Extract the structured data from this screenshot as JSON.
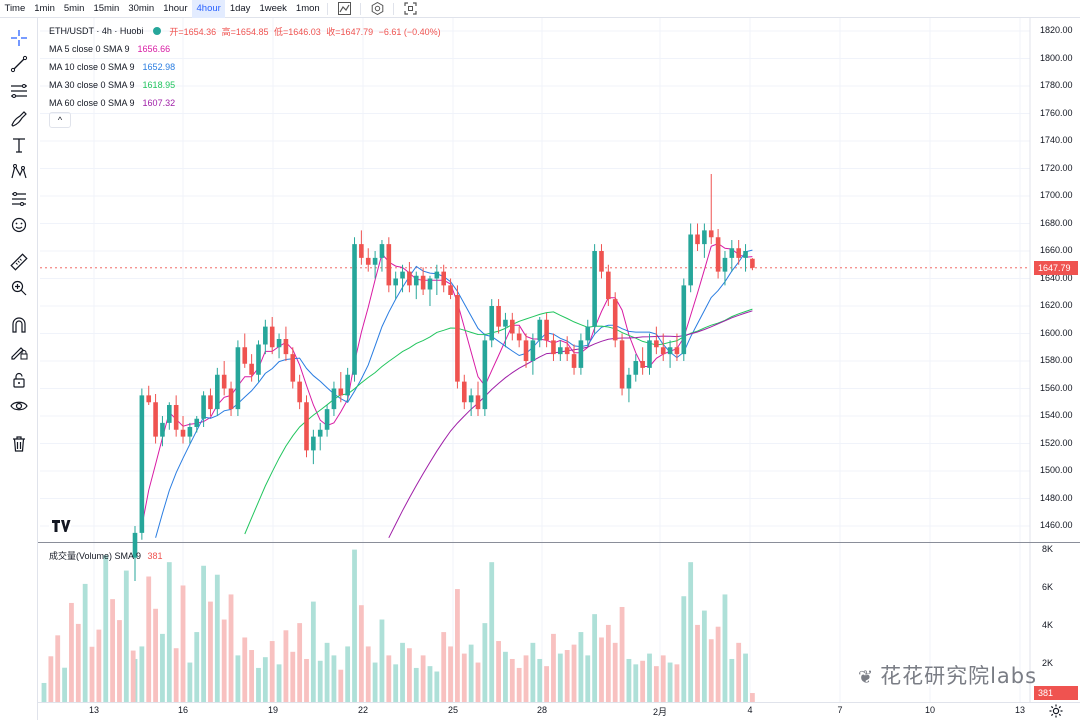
{
  "toolbar": {
    "timeframes": [
      "Time",
      "1min",
      "5min",
      "15min",
      "30min",
      "1hour",
      "4hour",
      "1day",
      "1week",
      "1mon"
    ],
    "active_timeframe": "4hour",
    "icons": [
      "indicators-icon",
      "settings-icon",
      "fullscreen-icon"
    ]
  },
  "left_tools": [
    "crosshair-icon",
    "trendline-icon",
    "parallel-channel-icon",
    "brush-icon",
    "text-icon",
    "pattern-icon",
    "long-position-icon",
    "emoji-icon",
    "ruler-icon",
    "zoom-in-icon",
    "magnet-icon",
    "lock-drawing-icon",
    "lock-icon",
    "eye-icon",
    "trash-icon"
  ],
  "legend": {
    "symbol": "ETH/USDT · 4h · Huobi",
    "open": "开=1654.36",
    "high": "高=1654.85",
    "low": "低=1646.03",
    "close": "收=1647.79",
    "change": "−6.61 (−0.40%)",
    "collapse": "^"
  },
  "ma": [
    {
      "label": "MA 5 close 0 SMA 9",
      "value": "1656.66",
      "color": "#d81ba4"
    },
    {
      "label": "MA 10 close 0 SMA 9",
      "value": "1652.98",
      "color": "#2a7de1"
    },
    {
      "label": "MA 30 close 0 SMA 9",
      "value": "1618.95",
      "color": "#22c55e"
    },
    {
      "label": "MA 60 close 0 SMA 9",
      "value": "1607.32",
      "color": "#a020a8"
    }
  ],
  "volume_legend": {
    "label": "成交量(Volume) SMA 9",
    "value": "381"
  },
  "colors": {
    "up": "#26a69a",
    "down": "#ef5350",
    "up_vol": "#aee0d8",
    "down_vol": "#f8c1c0"
  },
  "price_axis": [
    "1820.00",
    "1800.00",
    "1780.00",
    "1760.00",
    "1740.00",
    "1720.00",
    "1700.00",
    "1680.00",
    "1660.00",
    "1640.00",
    "1620.00",
    "1600.00",
    "1580.00",
    "1560.00",
    "1540.00",
    "1520.00",
    "1500.00",
    "1480.00",
    "1460.00"
  ],
  "current_price": "1647.79",
  "volume_axis": [
    "8K",
    "6K",
    "4K",
    "2K"
  ],
  "current_volume": "381",
  "time_axis": [
    "13",
    "16",
    "19",
    "22",
    "25",
    "28",
    "2月",
    "4",
    "7",
    "10",
    "13"
  ],
  "watermark": "花花研究院labs",
  "chart_data": {
    "type": "candlestick",
    "series_note": "ETH/USDT 4h candles, OHLC read approximately",
    "candles": [
      [
        1437,
        1460,
        1420,
        1455
      ],
      [
        1455,
        1560,
        1450,
        1555
      ],
      [
        1555,
        1562,
        1548,
        1550
      ],
      [
        1550,
        1556,
        1520,
        1525
      ],
      [
        1525,
        1540,
        1518,
        1535
      ],
      [
        1535,
        1550,
        1530,
        1548
      ],
      [
        1548,
        1555,
        1525,
        1530
      ],
      [
        1530,
        1540,
        1520,
        1525
      ],
      [
        1525,
        1535,
        1520,
        1532
      ],
      [
        1532,
        1540,
        1528,
        1538
      ],
      [
        1538,
        1558,
        1532,
        1555
      ],
      [
        1555,
        1560,
        1540,
        1545
      ],
      [
        1545,
        1575,
        1540,
        1570
      ],
      [
        1570,
        1580,
        1555,
        1560
      ],
      [
        1560,
        1565,
        1540,
        1545
      ],
      [
        1545,
        1595,
        1540,
        1590
      ],
      [
        1590,
        1600,
        1575,
        1578
      ],
      [
        1578,
        1585,
        1565,
        1570
      ],
      [
        1570,
        1595,
        1565,
        1592
      ],
      [
        1592,
        1610,
        1585,
        1605
      ],
      [
        1605,
        1612,
        1585,
        1590
      ],
      [
        1590,
        1600,
        1582,
        1596
      ],
      [
        1596,
        1605,
        1580,
        1585
      ],
      [
        1585,
        1590,
        1560,
        1565
      ],
      [
        1565,
        1570,
        1545,
        1550
      ],
      [
        1550,
        1555,
        1510,
        1515
      ],
      [
        1515,
        1530,
        1505,
        1525
      ],
      [
        1525,
        1535,
        1515,
        1530
      ],
      [
        1530,
        1548,
        1525,
        1545
      ],
      [
        1545,
        1565,
        1540,
        1560
      ],
      [
        1560,
        1572,
        1550,
        1555
      ],
      [
        1555,
        1575,
        1550,
        1570
      ],
      [
        1570,
        1670,
        1565,
        1665
      ],
      [
        1665,
        1675,
        1650,
        1655
      ],
      [
        1655,
        1662,
        1645,
        1650
      ],
      [
        1650,
        1660,
        1640,
        1655
      ],
      [
        1655,
        1668,
        1645,
        1665
      ],
      [
        1665,
        1670,
        1630,
        1635
      ],
      [
        1635,
        1645,
        1625,
        1640
      ],
      [
        1640,
        1650,
        1630,
        1645
      ],
      [
        1645,
        1652,
        1630,
        1635
      ],
      [
        1635,
        1645,
        1625,
        1642
      ],
      [
        1642,
        1648,
        1628,
        1632
      ],
      [
        1632,
        1642,
        1620,
        1640
      ],
      [
        1640,
        1650,
        1628,
        1645
      ],
      [
        1645,
        1650,
        1630,
        1635
      ],
      [
        1635,
        1640,
        1625,
        1628
      ],
      [
        1628,
        1635,
        1560,
        1565
      ],
      [
        1565,
        1570,
        1545,
        1550
      ],
      [
        1550,
        1560,
        1540,
        1555
      ],
      [
        1555,
        1565,
        1540,
        1545
      ],
      [
        1545,
        1600,
        1540,
        1595
      ],
      [
        1595,
        1625,
        1590,
        1620
      ],
      [
        1620,
        1625,
        1600,
        1605
      ],
      [
        1605,
        1615,
        1590,
        1610
      ],
      [
        1610,
        1615,
        1595,
        1600
      ],
      [
        1600,
        1605,
        1590,
        1595
      ],
      [
        1595,
        1600,
        1575,
        1580
      ],
      [
        1580,
        1600,
        1570,
        1595
      ],
      [
        1595,
        1612,
        1590,
        1610
      ],
      [
        1610,
        1615,
        1590,
        1595
      ],
      [
        1595,
        1600,
        1580,
        1585
      ],
      [
        1585,
        1595,
        1580,
        1590
      ],
      [
        1590,
        1598,
        1580,
        1585
      ],
      [
        1585,
        1592,
        1570,
        1575
      ],
      [
        1575,
        1600,
        1570,
        1595
      ],
      [
        1595,
        1610,
        1590,
        1605
      ],
      [
        1605,
        1665,
        1600,
        1660
      ],
      [
        1660,
        1665,
        1640,
        1645
      ],
      [
        1645,
        1650,
        1620,
        1625
      ],
      [
        1625,
        1630,
        1590,
        1595
      ],
      [
        1595,
        1600,
        1555,
        1560
      ],
      [
        1560,
        1575,
        1550,
        1570
      ],
      [
        1570,
        1585,
        1565,
        1580
      ],
      [
        1580,
        1590,
        1570,
        1575
      ],
      [
        1575,
        1600,
        1570,
        1595
      ],
      [
        1595,
        1605,
        1585,
        1590
      ],
      [
        1590,
        1600,
        1580,
        1585
      ],
      [
        1585,
        1595,
        1575,
        1590
      ],
      [
        1590,
        1600,
        1580,
        1585
      ],
      [
        1585,
        1640,
        1580,
        1635
      ],
      [
        1635,
        1680,
        1630,
        1672
      ],
      [
        1672,
        1680,
        1660,
        1665
      ],
      [
        1665,
        1680,
        1655,
        1675
      ],
      [
        1675,
        1716,
        1665,
        1670
      ],
      [
        1670,
        1676,
        1640,
        1645
      ],
      [
        1645,
        1660,
        1635,
        1655
      ],
      [
        1655,
        1668,
        1645,
        1662
      ],
      [
        1662,
        1668,
        1650,
        1655
      ],
      [
        1655,
        1665,
        1645,
        1660
      ],
      [
        1654.36,
        1654.85,
        1646.03,
        1647.79
      ]
    ],
    "ma": {
      "MA5": 1656.66,
      "MA10": 1652.98,
      "MA30": 1618.95,
      "MA60": 1607.32
    },
    "ylim": [
      1450,
      1830
    ],
    "volume_ylim": [
      0,
      8400
    ]
  }
}
